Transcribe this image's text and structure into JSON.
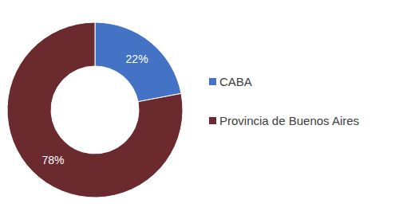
{
  "chart_data": {
    "type": "donut",
    "categories": [
      "CABA",
      "Provincia de Buenos Aires"
    ],
    "values": [
      22,
      78
    ],
    "value_labels": [
      "22%",
      "78%"
    ],
    "colors": [
      "#4472c4",
      "#6b2a2e"
    ],
    "data_labels": true,
    "legend": "right"
  }
}
